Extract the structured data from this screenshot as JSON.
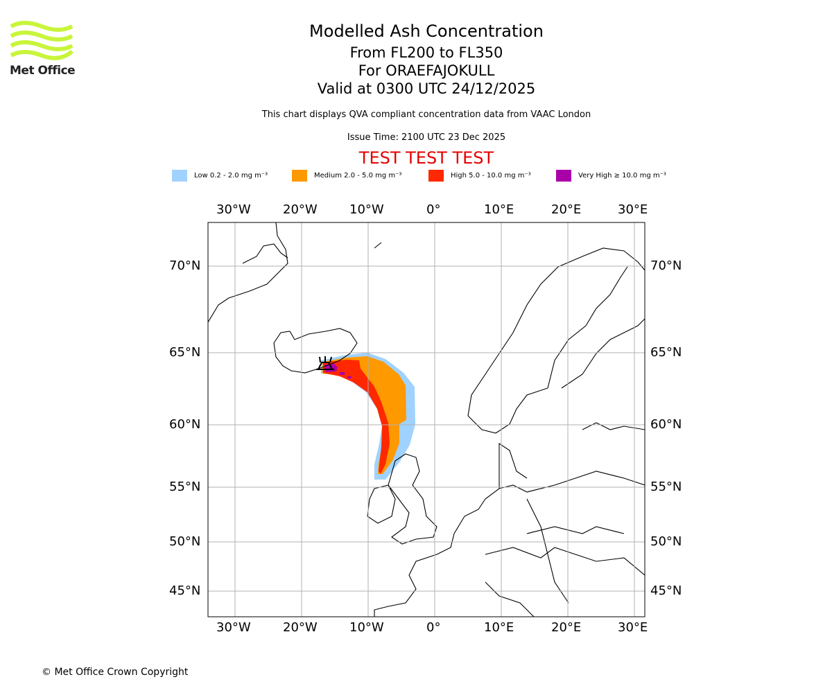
{
  "logo": {
    "text": "Met Office",
    "color": "#c8f53a"
  },
  "title": {
    "main": "Modelled Ash Concentration",
    "levels": "From FL200 to FL350",
    "volcano": "For ORAEFAJOKULL",
    "valid": "Valid at 0300 UTC 24/12/2025"
  },
  "subtitle": "This chart displays QVA compliant concentration data from VAAC London",
  "issue_time": "Issue Time: 2100 UTC 23 Dec 2025",
  "test_banner": "TEST TEST TEST",
  "legend": [
    {
      "label": "Low 0.2 - 2.0 mg m⁻³",
      "color": "#a0d2ff"
    },
    {
      "label": "Medium 2.0 - 5.0 mg m⁻³",
      "color": "#ff9900"
    },
    {
      "label": "High 5.0 - 10.0 mg m⁻³",
      "color": "#ff2800"
    },
    {
      "label": "Very High ≥ 10.0 mg m⁻³",
      "color": "#aa00aa"
    }
  ],
  "map": {
    "lon_labels": [
      "30°W",
      "20°W",
      "10°W",
      "0°",
      "10°E",
      "20°E",
      "30°E"
    ],
    "lat_labels": [
      "70°N",
      "65°N",
      "60°N",
      "55°N",
      "50°N",
      "45°N"
    ],
    "volcano_symbol": "volcano-icon"
  },
  "copyright": "© Met Office Crown Copyright"
}
